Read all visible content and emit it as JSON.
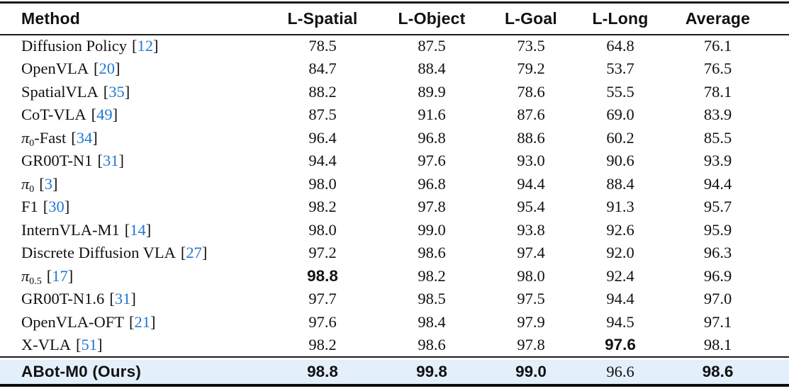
{
  "table": {
    "bracket_open": "[",
    "bracket_close": "]",
    "columns": [
      "Method",
      "L-Spatial",
      "L-Object",
      "L-Goal",
      "L-Long",
      "Average"
    ],
    "rows": [
      {
        "name": "Diffusion Policy",
        "name_html": "Diffusion Policy",
        "cite": "12",
        "values": [
          "78.5",
          "87.5",
          "73.5",
          "64.8",
          "76.1"
        ],
        "best": [
          false,
          false,
          false,
          false,
          false
        ]
      },
      {
        "name": "OpenVLA",
        "name_html": "OpenVLA",
        "cite": "20",
        "values": [
          "84.7",
          "88.4",
          "79.2",
          "53.7",
          "76.5"
        ],
        "best": [
          false,
          false,
          false,
          false,
          false
        ]
      },
      {
        "name": "SpatialVLA",
        "name_html": "SpatialVLA",
        "cite": "35",
        "values": [
          "88.2",
          "89.9",
          "78.6",
          "55.5",
          "78.1"
        ],
        "best": [
          false,
          false,
          false,
          false,
          false
        ]
      },
      {
        "name": "CoT-VLA",
        "name_html": "CoT-VLA",
        "cite": "49",
        "values": [
          "87.5",
          "91.6",
          "87.6",
          "69.0",
          "83.9"
        ],
        "best": [
          false,
          false,
          false,
          false,
          false
        ]
      },
      {
        "name": "π0-Fast",
        "name_html": "<i>π</i><sub>0</sub>-Fast",
        "cite": "34",
        "values": [
          "96.4",
          "96.8",
          "88.6",
          "60.2",
          "85.5"
        ],
        "best": [
          false,
          false,
          false,
          false,
          false
        ]
      },
      {
        "name": "GR00T-N1",
        "name_html": "GR00T-N1",
        "cite": "31",
        "values": [
          "94.4",
          "97.6",
          "93.0",
          "90.6",
          "93.9"
        ],
        "best": [
          false,
          false,
          false,
          false,
          false
        ]
      },
      {
        "name": "π0",
        "name_html": "<i>π</i><sub>0</sub>",
        "cite": "3",
        "values": [
          "98.0",
          "96.8",
          "94.4",
          "88.4",
          "94.4"
        ],
        "best": [
          false,
          false,
          false,
          false,
          false
        ]
      },
      {
        "name": "F1",
        "name_html": "F1",
        "cite": "30",
        "values": [
          "98.2",
          "97.8",
          "95.4",
          "91.3",
          "95.7"
        ],
        "best": [
          false,
          false,
          false,
          false,
          false
        ]
      },
      {
        "name": "InternVLA-M1",
        "name_html": "InternVLA-M1",
        "cite": "14",
        "values": [
          "98.0",
          "99.0",
          "93.8",
          "92.6",
          "95.9"
        ],
        "best": [
          false,
          false,
          false,
          false,
          false
        ]
      },
      {
        "name": "Discrete Diffusion VLA",
        "name_html": "Discrete Diffusion VLA",
        "cite": "27",
        "values": [
          "97.2",
          "98.6",
          "97.4",
          "92.0",
          "96.3"
        ],
        "best": [
          false,
          false,
          false,
          false,
          false
        ]
      },
      {
        "name": "π0.5",
        "name_html": "<i>π</i><sub>0.5</sub>",
        "cite": "17",
        "values": [
          "98.8",
          "98.2",
          "98.0",
          "92.4",
          "96.9"
        ],
        "best": [
          true,
          false,
          false,
          false,
          false
        ]
      },
      {
        "name": "GR00T-N1.6",
        "name_html": "GR00T-N1.6",
        "cite": "31",
        "values": [
          "97.7",
          "98.5",
          "97.5",
          "94.4",
          "97.0"
        ],
        "best": [
          false,
          false,
          false,
          false,
          false
        ]
      },
      {
        "name": "OpenVLA-OFT",
        "name_html": "OpenVLA-OFT",
        "cite": "21",
        "values": [
          "97.6",
          "98.4",
          "97.9",
          "94.5",
          "97.1"
        ],
        "best": [
          false,
          false,
          false,
          false,
          false
        ]
      },
      {
        "name": "X-VLA",
        "name_html": "X-VLA",
        "cite": "51",
        "values": [
          "98.2",
          "98.6",
          "97.8",
          "97.6",
          "98.1"
        ],
        "best": [
          false,
          false,
          false,
          true,
          false
        ]
      }
    ],
    "highlight_row": {
      "name": "ABot-M0 (Ours)",
      "values": [
        "98.8",
        "99.8",
        "99.0",
        "96.6",
        "98.6"
      ],
      "best": [
        true,
        true,
        true,
        false,
        true
      ]
    },
    "colors": {
      "highlight_bg": "#e3effb",
      "citation_blue": "#2277d4",
      "rule": "#1a1a1a",
      "text": "#111111"
    }
  }
}
